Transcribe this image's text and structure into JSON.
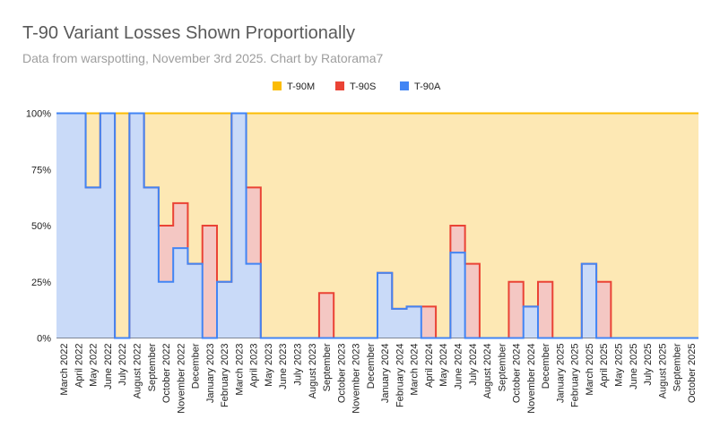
{
  "chart_data": {
    "type": "area",
    "title": "T-90 Variant Losses Shown Proportionally",
    "subtitle": "Data from warspotting, November 3rd 2025. Chart by Ratorama7",
    "stacking": "percent",
    "step": true,
    "ylim": [
      0,
      100
    ],
    "y_tick_labels": [
      "0%",
      "25%",
      "50%",
      "75%",
      "100%"
    ],
    "grid": true,
    "legend_position": "top",
    "categories": [
      "March 2022",
      "April 2022",
      "May 2022",
      "June 2022",
      "July 2022",
      "August 2022",
      "September",
      "October 2022",
      "November 2022",
      "December",
      "January 2023",
      "February 2023",
      "March 2023",
      "April 2023",
      "May 2023",
      "June 2023",
      "July 2023",
      "August 2023",
      "September",
      "October 2023",
      "November 2023",
      "December",
      "January 2024",
      "February 2024",
      "March 2024",
      "April 2024",
      "May 2024",
      "June 2024",
      "July 2024",
      "August 2024",
      "September",
      "October 2024",
      "November 2024",
      "December",
      "January 2025",
      "February 2025",
      "March 2025",
      "April 2025",
      "May 2025",
      "June 2025",
      "July 2025",
      "August 2025",
      "September",
      "October 2025"
    ],
    "series": [
      {
        "name": "T-90A",
        "color": "#4285f4",
        "fill": "#c9daf8",
        "values": [
          100,
          100,
          67,
          100,
          0,
          100,
          67,
          25,
          40,
          33,
          0,
          25,
          100,
          33,
          0,
          0,
          0,
          0,
          0,
          0,
          0,
          0,
          29,
          13,
          14,
          0,
          0,
          38,
          0,
          0,
          0,
          0,
          14,
          0,
          0,
          0,
          33,
          0,
          0,
          0,
          0,
          0,
          0,
          0
        ]
      },
      {
        "name": "T-90S",
        "color": "#ea4335",
        "fill": "#f4c7c3",
        "values": [
          0,
          0,
          0,
          0,
          0,
          0,
          0,
          25,
          20,
          0,
          50,
          0,
          0,
          34,
          0,
          0,
          0,
          0,
          20,
          0,
          0,
          0,
          0,
          0,
          0,
          14,
          0,
          12,
          33,
          0,
          0,
          25,
          0,
          25,
          0,
          0,
          0,
          25,
          0,
          0,
          0,
          0,
          0,
          0
        ]
      },
      {
        "name": "T-90M",
        "color": "#fbbc04",
        "fill": "#fde8b4",
        "values": [
          0,
          0,
          33,
          0,
          100,
          0,
          33,
          50,
          40,
          67,
          50,
          75,
          0,
          33,
          100,
          100,
          100,
          100,
          80,
          100,
          100,
          100,
          71,
          87,
          86,
          86,
          100,
          50,
          67,
          100,
          100,
          75,
          86,
          75,
          100,
          100,
          67,
          75,
          100,
          100,
          100,
          100,
          100,
          100
        ]
      }
    ],
    "legend_order": [
      "T-90M",
      "T-90S",
      "T-90A"
    ]
  }
}
